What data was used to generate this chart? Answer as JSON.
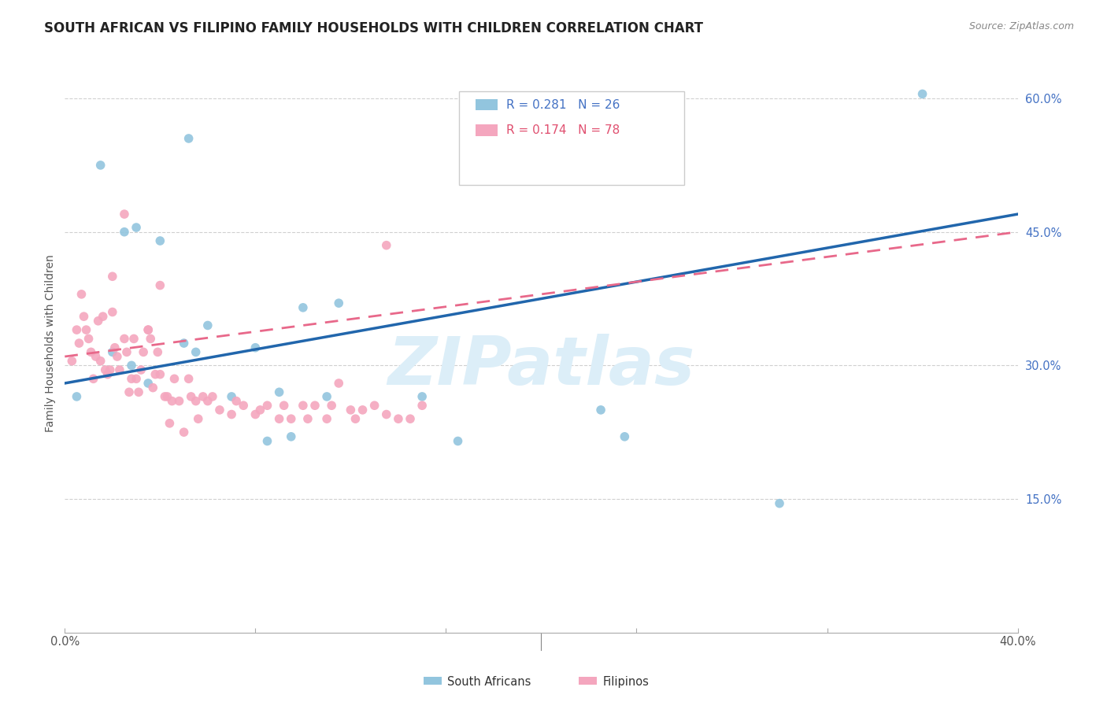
{
  "title": "SOUTH AFRICAN VS FILIPINO FAMILY HOUSEHOLDS WITH CHILDREN CORRELATION CHART",
  "source": "Source: ZipAtlas.com",
  "ylabel": "Family Households with Children",
  "sa_color": "#92c5de",
  "fi_color": "#f4a6be",
  "sa_line_color": "#2166ac",
  "fi_line_color": "#e8688a",
  "background_color": "#ffffff",
  "grid_color": "#d0d0d0",
  "watermark_color": "#dceef8",
  "title_fontsize": 12,
  "axis_fontsize": 10,
  "tick_fontsize": 10.5,
  "sa_scatter": {
    "x": [
      0.5,
      1.5,
      2.0,
      2.8,
      3.5,
      4.0,
      5.0,
      5.5,
      6.0,
      7.0,
      8.0,
      9.0,
      10.0,
      11.0,
      11.5,
      15.0,
      16.5,
      22.5,
      23.5,
      30.0,
      36.0,
      2.5,
      3.0,
      8.5,
      9.5,
      5.2
    ],
    "y": [
      26.5,
      52.5,
      31.5,
      30.0,
      28.0,
      44.0,
      32.5,
      31.5,
      34.5,
      26.5,
      32.0,
      27.0,
      36.5,
      26.5,
      37.0,
      26.5,
      21.5,
      25.0,
      22.0,
      14.5,
      60.5,
      45.0,
      45.5,
      21.5,
      22.0,
      55.5
    ]
  },
  "fi_scatter": {
    "x": [
      0.3,
      0.5,
      0.7,
      0.8,
      1.0,
      1.2,
      1.3,
      1.5,
      1.6,
      1.8,
      2.0,
      2.2,
      2.3,
      2.5,
      2.6,
      2.8,
      3.0,
      3.2,
      3.3,
      3.5,
      3.6,
      3.8,
      4.0,
      4.2,
      4.4,
      4.6,
      4.8,
      5.0,
      5.2,
      5.5,
      5.8,
      6.0,
      6.5,
      7.0,
      7.5,
      8.0,
      8.5,
      9.0,
      9.5,
      10.0,
      10.5,
      11.0,
      11.5,
      12.0,
      12.5,
      13.0,
      13.5,
      14.0,
      14.5,
      15.0,
      2.0,
      2.5,
      3.5,
      4.0,
      4.5,
      0.6,
      0.9,
      1.4,
      1.7,
      2.1,
      2.7,
      3.1,
      3.7,
      4.3,
      5.3,
      6.2,
      7.2,
      8.2,
      9.2,
      10.2,
      11.2,
      12.2,
      1.1,
      1.9,
      2.9,
      3.9,
      5.6,
      13.5
    ],
    "y": [
      30.5,
      34.0,
      38.0,
      35.5,
      33.0,
      28.5,
      31.0,
      30.5,
      35.5,
      29.0,
      36.0,
      31.0,
      29.5,
      33.0,
      31.5,
      28.5,
      28.5,
      29.5,
      31.5,
      34.0,
      33.0,
      29.0,
      29.0,
      26.5,
      23.5,
      28.5,
      26.0,
      22.5,
      28.5,
      26.0,
      26.5,
      26.0,
      25.0,
      24.5,
      25.5,
      24.5,
      25.5,
      24.0,
      24.0,
      25.5,
      25.5,
      24.0,
      28.0,
      25.0,
      25.0,
      25.5,
      24.5,
      24.0,
      24.0,
      25.5,
      40.0,
      47.0,
      34.0,
      39.0,
      26.0,
      32.5,
      34.0,
      35.0,
      29.5,
      32.0,
      27.0,
      27.0,
      27.5,
      26.5,
      26.5,
      26.5,
      26.0,
      25.0,
      25.5,
      24.0,
      25.5,
      24.0,
      31.5,
      29.5,
      33.0,
      31.5,
      24.0,
      43.5
    ]
  },
  "xlim": [
    0.0,
    40.0
  ],
  "ylim": [
    0.0,
    65.0
  ],
  "yticks": [
    15.0,
    30.0,
    45.0,
    60.0
  ],
  "xticks": [
    0.0,
    8.0,
    16.0,
    24.0,
    32.0,
    40.0
  ],
  "xtick_labels": [
    "0.0%",
    "",
    "",
    "",
    "",
    "40.0%"
  ],
  "ytick_labels": [
    "15.0%",
    "30.0%",
    "45.0%",
    "60.0%"
  ]
}
